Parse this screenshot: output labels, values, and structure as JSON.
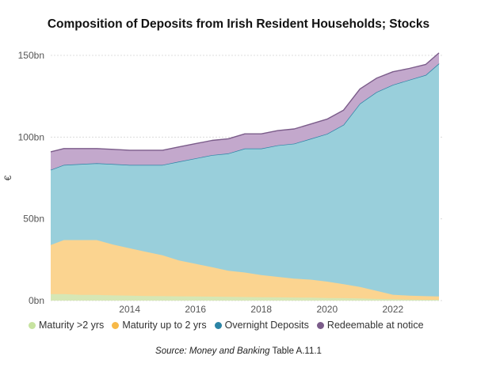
{
  "chart_data": {
    "type": "area",
    "stacked": true,
    "title": "Composition of Deposits from Irish Resident Households; Stocks",
    "ylabel": "€",
    "xlabel": "",
    "ylim": [
      0,
      150
    ],
    "xlim": [
      2011.6,
      2023.4
    ],
    "y_ticks": [
      {
        "value": 0,
        "label": "0bn"
      },
      {
        "value": 50,
        "label": "50bn"
      },
      {
        "value": 100,
        "label": "100bn"
      },
      {
        "value": 150,
        "label": "150bn"
      }
    ],
    "x_ticks": [
      {
        "value": 2014,
        "label": "2014"
      },
      {
        "value": 2016,
        "label": "2016"
      },
      {
        "value": 2018,
        "label": "2018"
      },
      {
        "value": 2020,
        "label": "2020"
      },
      {
        "value": 2022,
        "label": "2022"
      }
    ],
    "grid": "horizontal",
    "legend_position": "bottom",
    "x": [
      2011.6,
      2012.0,
      2012.5,
      2013.0,
      2013.5,
      2014.0,
      2014.5,
      2015.0,
      2015.5,
      2016.0,
      2016.5,
      2017.0,
      2017.5,
      2018.0,
      2018.5,
      2019.0,
      2019.5,
      2020.0,
      2020.5,
      2021.0,
      2021.5,
      2022.0,
      2022.5,
      2023.0,
      2023.4
    ],
    "series": [
      {
        "name": "Maturity >2 yrs",
        "color": "#d6e7b5",
        "values": [
          4.0,
          4.0,
          3.5,
          3.5,
          3.2,
          3.0,
          2.8,
          2.7,
          2.6,
          2.5,
          2.4,
          2.3,
          2.2,
          2.1,
          2.0,
          1.9,
          1.8,
          1.6,
          1.5,
          1.3,
          1.0,
          0.8,
          0.6,
          0.5,
          0.5
        ]
      },
      {
        "name": "Maturity up to 2 yrs",
        "color": "#fbd490",
        "values": [
          30.0,
          33.0,
          33.5,
          33.5,
          31.0,
          29.0,
          27.0,
          25.0,
          22.0,
          20.0,
          18.0,
          16.0,
          15.0,
          13.5,
          12.5,
          11.5,
          11.0,
          10.0,
          8.5,
          7.0,
          5.0,
          2.8,
          2.4,
          2.2,
          2.0
        ]
      },
      {
        "name": "Overnight Deposits",
        "color": "#99cfdb",
        "line_color": "#2b84a5",
        "values": [
          46.0,
          46.0,
          46.5,
          47.0,
          49.3,
          51.0,
          53.2,
          55.3,
          60.4,
          64.5,
          68.6,
          71.7,
          75.8,
          77.4,
          80.5,
          82.6,
          86.2,
          90.4,
          97.5,
          112.2,
          121.5,
          128.4,
          132.0,
          135.3,
          142.5
        ]
      },
      {
        "name": "Redeemable at notice",
        "color": "#c3a8cc",
        "line_color": "#7b5c8a",
        "values": [
          11.0,
          10.0,
          9.5,
          9.0,
          9.0,
          9.0,
          9.0,
          9.0,
          9.0,
          9.0,
          9.0,
          9.0,
          9.0,
          9.0,
          9.0,
          9.0,
          9.0,
          9.0,
          9.0,
          9.0,
          8.5,
          8.0,
          7.0,
          6.5,
          6.5
        ]
      }
    ]
  },
  "source_note": {
    "prefix": "Source: ",
    "italic": "Money and Banking",
    "suffix": " Table A.11.1"
  }
}
